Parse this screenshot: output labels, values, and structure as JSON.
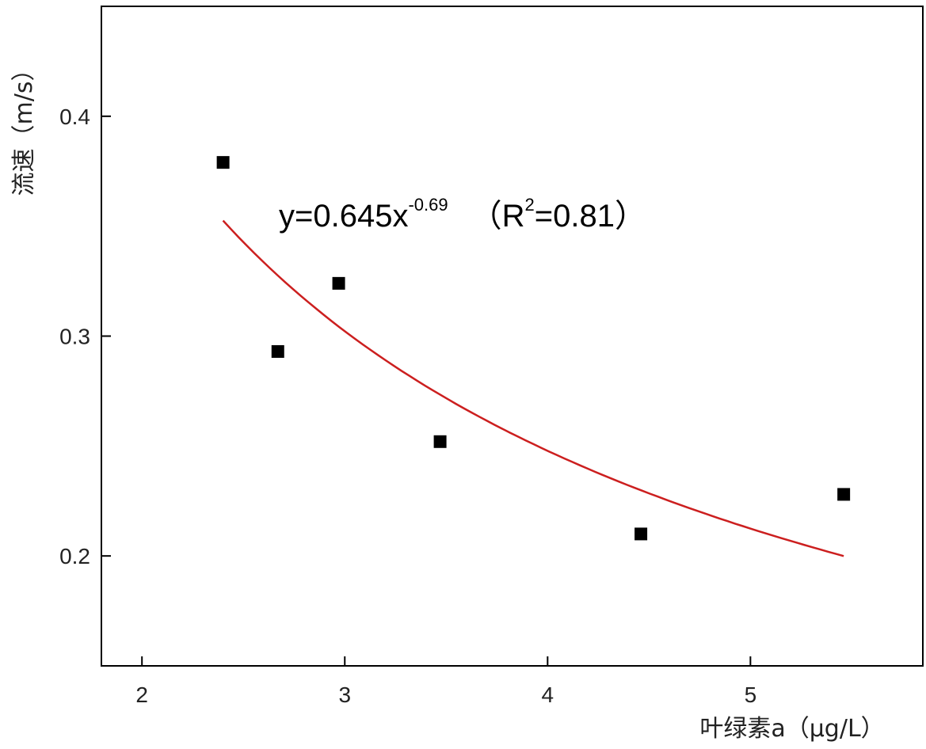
{
  "chart_data": {
    "type": "scatter",
    "xlabel": "叶绿素a（μg/L）",
    "ylabel": "流速（m/s）",
    "xlim": [
      1.8,
      5.85
    ],
    "ylim": [
      0.15,
      0.45
    ],
    "x_ticks": [
      2,
      3,
      4,
      5
    ],
    "x_tick_labels": [
      "2",
      "3",
      "4",
      "5"
    ],
    "y_ticks": [
      0.2,
      0.3,
      0.4
    ],
    "y_tick_labels": [
      "0.2",
      "0.3",
      "0.4"
    ],
    "grid": false,
    "series": [
      {
        "marker": "square",
        "color": "#000000",
        "points": [
          {
            "x": 2.4,
            "y": 0.379
          },
          {
            "x": 2.67,
            "y": 0.293
          },
          {
            "x": 2.97,
            "y": 0.324
          },
          {
            "x": 3.47,
            "y": 0.252
          },
          {
            "x": 4.46,
            "y": 0.21
          },
          {
            "x": 5.46,
            "y": 0.228
          }
        ]
      }
    ],
    "fit": {
      "type": "power",
      "a": 0.645,
      "b": -0.69,
      "x_range": [
        2.4,
        5.46
      ],
      "color": "#cc1f1f"
    },
    "annotation": {
      "prefix": "y=0.645x",
      "exponent": "-0.69",
      "r_open": "（R",
      "r_sup": "2",
      "r_close": "=0.81）"
    }
  }
}
